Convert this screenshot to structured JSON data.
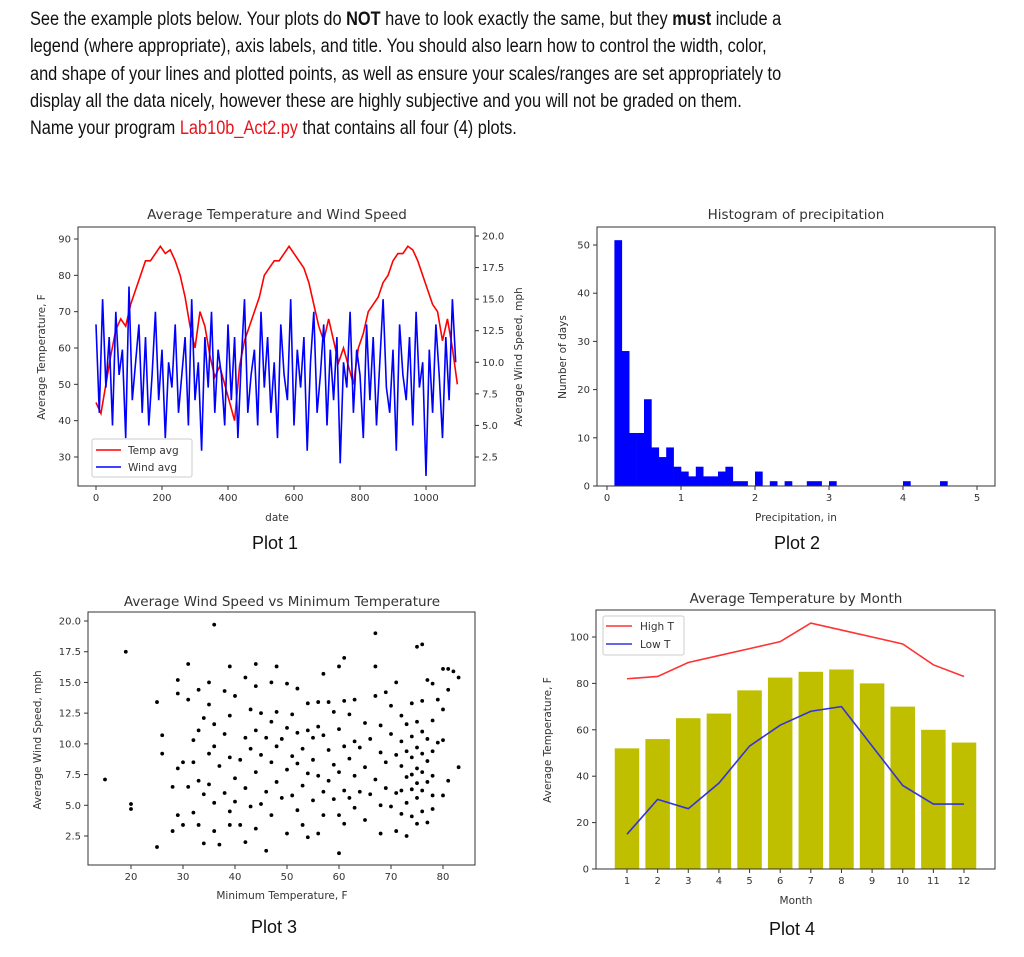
{
  "instructions": {
    "lines": [
      [
        {
          "t": "See the example plots below. Your plots do "
        },
        {
          "t": "NOT",
          "s": "bold"
        },
        {
          "t": " have to look exactly the same, but they "
        },
        {
          "t": "must",
          "s": "bold"
        },
        {
          "t": " include a"
        }
      ],
      [
        {
          "t": "legend (where appropriate), axis labels, and title. You should also learn how to control the width, color,"
        }
      ],
      [
        {
          "t": "and shape of your lines and plotted points, as well as ensure your scales/ranges are set appropriately to"
        }
      ],
      [
        {
          "t": "display all the data nicely, however these are highly subjective and you will not be graded on them."
        }
      ],
      [
        {
          "t": "Name your program "
        },
        {
          "t": "Lab10b_Act2.py",
          "s": "red"
        },
        {
          "t": " that contains all four (4) plots."
        }
      ]
    ]
  },
  "captions": [
    "Plot 1",
    "Plot 2",
    "Plot 3",
    "Plot 4"
  ],
  "colors": {
    "temp": "#ff0000",
    "wind": "#0000ff",
    "hist": "#0000ff",
    "scatter": "#000000",
    "bars": "#bfbf00",
    "high": "#ff3333",
    "low": "#3333dd",
    "link": "#e8141b"
  },
  "chart_data": [
    {
      "type": "line",
      "title": "Average Temperature and Wind Speed",
      "xlabel": "date",
      "ylabel": "Average Temperature, F",
      "ylabel_right": "Average Wind Speed, mph",
      "x_ticks": [
        "0",
        "200",
        "400",
        "600",
        "800",
        "1000"
      ],
      "y_ticks": [
        "30",
        "40",
        "50",
        "60",
        "70",
        "80",
        "90"
      ],
      "y_right_ticks": [
        "2.5",
        "5.0",
        "7.5",
        "10.0",
        "12.5",
        "15.0",
        "17.5",
        "20.0"
      ],
      "legend": [
        "Temp avg",
        "Wind avg"
      ],
      "legend_placement": "lower-left",
      "series": [
        {
          "name": "Temp avg",
          "axis": "left",
          "x_step": 15,
          "values": [
            45,
            42,
            50,
            58,
            65,
            68,
            66,
            72,
            76,
            80,
            84,
            84,
            86,
            88,
            86,
            87,
            84,
            80,
            74,
            66,
            60,
            70,
            66,
            58,
            52,
            55,
            50,
            45,
            40,
            55,
            62,
            66,
            70,
            74,
            80,
            82,
            84,
            84,
            86,
            88,
            86,
            84,
            82,
            78,
            72,
            66,
            62,
            68,
            62,
            56,
            60,
            55,
            50,
            60,
            64,
            70,
            72,
            74,
            78,
            80,
            84,
            86,
            86,
            88,
            87,
            84,
            80,
            76,
            72,
            70,
            62,
            68,
            60,
            50
          ]
        },
        {
          "name": "Wind avg",
          "axis": "right",
          "x_step": 10,
          "values": [
            13,
            6,
            15,
            8,
            12,
            5,
            14,
            9,
            11,
            4,
            16,
            7,
            10,
            13,
            6,
            12,
            5,
            9,
            14,
            7,
            11,
            4,
            10,
            8,
            13,
            6,
            9,
            12,
            5,
            15,
            7,
            10,
            3,
            12,
            8,
            14,
            6,
            11,
            9,
            5,
            13,
            7,
            12,
            4,
            10,
            15,
            6,
            9,
            11,
            5,
            14,
            8,
            12,
            6,
            10,
            4,
            13,
            9,
            7,
            15,
            5,
            11,
            8,
            12,
            3,
            10,
            14,
            6,
            9,
            13,
            5,
            11,
            7,
            12,
            2,
            10,
            8,
            14,
            6,
            11,
            9,
            4,
            13,
            7,
            12,
            5,
            10,
            15,
            8,
            6,
            11,
            3,
            13,
            9,
            7,
            12,
            5,
            14,
            8,
            10,
            1,
            11,
            6,
            13,
            9,
            4,
            12,
            7,
            15,
            10
          ]
        }
      ]
    },
    {
      "type": "bar",
      "title": "Histogram of precipitation",
      "xlabel": "Precipitation, in",
      "ylabel": "Number of days",
      "x_ticks": [
        "0",
        "1",
        "2",
        "3",
        "4",
        "5"
      ],
      "y_ticks": [
        "0",
        "10",
        "20",
        "30",
        "40",
        "50"
      ],
      "bin_start": 0.1,
      "bin_width": 0.1,
      "counts": [
        51,
        28,
        11,
        11,
        18,
        8,
        6,
        8,
        4,
        3,
        2,
        4,
        2,
        2,
        3,
        4,
        1,
        1,
        0,
        3,
        0,
        1,
        0,
        1,
        0,
        0,
        1,
        1,
        0,
        1,
        0,
        0,
        0,
        0,
        0,
        0,
        0,
        0,
        0,
        1,
        0,
        0,
        0,
        0,
        1
      ]
    },
    {
      "type": "scatter",
      "title": "Average Wind Speed vs Minimum Temperature",
      "xlabel": "Minimum Temperature, F",
      "ylabel": "Average Wind Speed, mph",
      "x_ticks": [
        "20",
        "30",
        "40",
        "50",
        "60",
        "70",
        "80"
      ],
      "y_ticks": [
        "2.5",
        "5.0",
        "7.5",
        "10.0",
        "12.5",
        "15.0",
        "17.5",
        "20.0"
      ],
      "points": [
        [
          15,
          7.1
        ],
        [
          19,
          17.5
        ],
        [
          20,
          5.1
        ],
        [
          20,
          4.7
        ],
        [
          25,
          13.4
        ],
        [
          25,
          1.6
        ],
        [
          26,
          10.7
        ],
        [
          26,
          9.2
        ],
        [
          28,
          6.5
        ],
        [
          28,
          2.9
        ],
        [
          29,
          15.2
        ],
        [
          29,
          14.1
        ],
        [
          29,
          8
        ],
        [
          29,
          4.2
        ],
        [
          30,
          8.5
        ],
        [
          30,
          3.4
        ],
        [
          31,
          16.5
        ],
        [
          31,
          13.6
        ],
        [
          31,
          6.5
        ],
        [
          32,
          10.3
        ],
        [
          32,
          8.5
        ],
        [
          32,
          4.4
        ],
        [
          33,
          14.4
        ],
        [
          33,
          11.1
        ],
        [
          33,
          7
        ],
        [
          33,
          3.4
        ],
        [
          34,
          12.1
        ],
        [
          34,
          5.9
        ],
        [
          34,
          1.9
        ],
        [
          35,
          15
        ],
        [
          35,
          13.2
        ],
        [
          35,
          9.2
        ],
        [
          35,
          6.7
        ],
        [
          36,
          19.7
        ],
        [
          36,
          11.6
        ],
        [
          36,
          9.8
        ],
        [
          36,
          5.2
        ],
        [
          36,
          2.9
        ],
        [
          37,
          8.2
        ],
        [
          37,
          1.8
        ],
        [
          38,
          14.3
        ],
        [
          38,
          10.8
        ],
        [
          38,
          6
        ],
        [
          39,
          16.3
        ],
        [
          39,
          12.3
        ],
        [
          39,
          8.9
        ],
        [
          39,
          4.5
        ],
        [
          39,
          3.4
        ],
        [
          40,
          13.9
        ],
        [
          40,
          7.2
        ],
        [
          40,
          5.3
        ],
        [
          41,
          8.7
        ],
        [
          41,
          3.4
        ],
        [
          42,
          15.4
        ],
        [
          42,
          10.5
        ],
        [
          42,
          6.4
        ],
        [
          42,
          2
        ],
        [
          43,
          12.8
        ],
        [
          43,
          9.6
        ],
        [
          43,
          4.9
        ],
        [
          44,
          16.5
        ],
        [
          44,
          14.7
        ],
        [
          44,
          11.1
        ],
        [
          44,
          7.7
        ],
        [
          44,
          3.1
        ],
        [
          45,
          12.5
        ],
        [
          45,
          9.1
        ],
        [
          45,
          5.1
        ],
        [
          46,
          10.5
        ],
        [
          46,
          6.1
        ],
        [
          46,
          1.3
        ],
        [
          47,
          15
        ],
        [
          47,
          11.8
        ],
        [
          47,
          8.5
        ],
        [
          47,
          4.2
        ],
        [
          48,
          16.3
        ],
        [
          48,
          12.6
        ],
        [
          48,
          9.8
        ],
        [
          48,
          6.9
        ],
        [
          49,
          10.4
        ],
        [
          49,
          5.6
        ],
        [
          50,
          14.9
        ],
        [
          50,
          11.3
        ],
        [
          50,
          7.9
        ],
        [
          50,
          2.7
        ],
        [
          51,
          12.4
        ],
        [
          51,
          9
        ],
        [
          51,
          5.8
        ],
        [
          52,
          14.5
        ],
        [
          52,
          10.9
        ],
        [
          52,
          8.4
        ],
        [
          52,
          4.6
        ],
        [
          53,
          9.6
        ],
        [
          53,
          6.6
        ],
        [
          53,
          3.4
        ],
        [
          54,
          13.3
        ],
        [
          54,
          11.1
        ],
        [
          54,
          7.6
        ],
        [
          54,
          2.4
        ],
        [
          55,
          10.5
        ],
        [
          55,
          8.7
        ],
        [
          55,
          5.4
        ],
        [
          56,
          13.4
        ],
        [
          56,
          11.4
        ],
        [
          56,
          7.4
        ],
        [
          56,
          2.7
        ],
        [
          57,
          15.7
        ],
        [
          57,
          10.7
        ],
        [
          57,
          6.1
        ],
        [
          57,
          4.2
        ],
        [
          58,
          13.4
        ],
        [
          58,
          9.5
        ],
        [
          58,
          7
        ],
        [
          59,
          12.6
        ],
        [
          59,
          8.3
        ],
        [
          59,
          5.5
        ],
        [
          60,
          16.3
        ],
        [
          60,
          11.2
        ],
        [
          60,
          7.7
        ],
        [
          60,
          4.2
        ],
        [
          60,
          1.1
        ],
        [
          61,
          17
        ],
        [
          61,
          13.5
        ],
        [
          61,
          9.8
        ],
        [
          61,
          6.2
        ],
        [
          61,
          3.5
        ],
        [
          62,
          12.4
        ],
        [
          62,
          8.8
        ],
        [
          62,
          5.6
        ],
        [
          63,
          13.6
        ],
        [
          63,
          10.2
        ],
        [
          63,
          7.4
        ],
        [
          63,
          4.8
        ],
        [
          64,
          9.7
        ],
        [
          64,
          6.1
        ],
        [
          65,
          11.7
        ],
        [
          65,
          8.1
        ],
        [
          65,
          3.8
        ],
        [
          66,
          10.4
        ],
        [
          66,
          5.9
        ],
        [
          67,
          19
        ],
        [
          67,
          16.3
        ],
        [
          67,
          13.9
        ],
        [
          67,
          7.1
        ],
        [
          68,
          11.5
        ],
        [
          68,
          9.3
        ],
        [
          68,
          5
        ],
        [
          68,
          2.7
        ],
        [
          69,
          14.2
        ],
        [
          69,
          8.5
        ],
        [
          69,
          6.4
        ],
        [
          70,
          13.1
        ],
        [
          70,
          10.8
        ],
        [
          70,
          4.9
        ],
        [
          71,
          15
        ],
        [
          71,
          9.1
        ],
        [
          71,
          6
        ],
        [
          71,
          2.9
        ],
        [
          72,
          12.3
        ],
        [
          72,
          10.2
        ],
        [
          72,
          8.2
        ],
        [
          72,
          6.2
        ],
        [
          72,
          4.3
        ],
        [
          73,
          11.6
        ],
        [
          73,
          9.4
        ],
        [
          73,
          7.3
        ],
        [
          73,
          5.2
        ],
        [
          73,
          2.5
        ],
        [
          74,
          13.3
        ],
        [
          74,
          10.6
        ],
        [
          74,
          8.9
        ],
        [
          74,
          7.5
        ],
        [
          74,
          6.3
        ],
        [
          74,
          4.1
        ],
        [
          75,
          17.9
        ],
        [
          75,
          11.8
        ],
        [
          75,
          9.7
        ],
        [
          75,
          8
        ],
        [
          75,
          6.8
        ],
        [
          75,
          5.6
        ],
        [
          75,
          3.5
        ],
        [
          76,
          18.1
        ],
        [
          76,
          13.5
        ],
        [
          76,
          11
        ],
        [
          76,
          9.2
        ],
        [
          76,
          7.7
        ],
        [
          76,
          6.2
        ],
        [
          76,
          4.5
        ],
        [
          77,
          15.2
        ],
        [
          77,
          10.4
        ],
        [
          77,
          8.6
        ],
        [
          77,
          6.9
        ],
        [
          77,
          3.6
        ],
        [
          78,
          14.9
        ],
        [
          78,
          11.9
        ],
        [
          78,
          9.4
        ],
        [
          78,
          7.4
        ],
        [
          78,
          5.8
        ],
        [
          78,
          4.7
        ],
        [
          79,
          13.6
        ],
        [
          79,
          10.1
        ],
        [
          80,
          16.1
        ],
        [
          80,
          12.8
        ],
        [
          80,
          10.3
        ],
        [
          80,
          5.8
        ],
        [
          81,
          16.1
        ],
        [
          81,
          14.4
        ],
        [
          81,
          7
        ],
        [
          82,
          15.9
        ],
        [
          83,
          15.4
        ],
        [
          83,
          8.1
        ]
      ]
    },
    {
      "type": "bar",
      "title": "Average Temperature by Month",
      "xlabel": "Month",
      "ylabel": "Average Temperature, F",
      "categories": [
        "1",
        "2",
        "3",
        "4",
        "5",
        "6",
        "7",
        "8",
        "9",
        "10",
        "11",
        "12"
      ],
      "y_ticks": [
        "0",
        "20",
        "40",
        "60",
        "80",
        "100"
      ],
      "legend": [
        "High T",
        "Low T"
      ],
      "legend_placement": "top-left",
      "bars": [
        52,
        56,
        65,
        67,
        77,
        82.5,
        85,
        86,
        80,
        70,
        60,
        54.5
      ],
      "series": [
        {
          "name": "High T",
          "type": "line",
          "values": [
            82,
            83,
            89,
            92,
            95,
            98,
            106,
            103,
            100,
            97,
            88,
            83
          ]
        },
        {
          "name": "Low T",
          "type": "line",
          "values": [
            15,
            30,
            26,
            37,
            53,
            62,
            68,
            70,
            53,
            36,
            28,
            28
          ]
        }
      ]
    }
  ]
}
